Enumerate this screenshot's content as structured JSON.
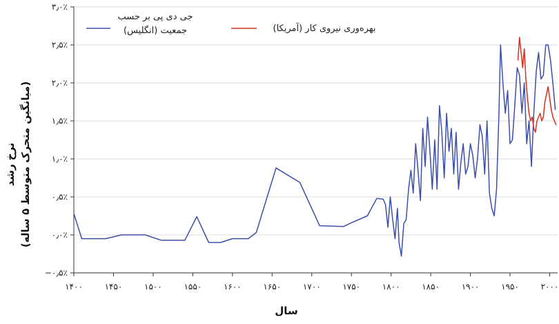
{
  "chart_data": {
    "type": "line",
    "xlabel": "سال",
    "ylabel_line1": "نرخ رشد",
    "ylabel_line2": "(میانگین متحرک متوسط ۵ ساله)",
    "xlim": [
      1400,
      2010
    ],
    "ylim": [
      -0.5,
      3.0
    ],
    "grid": "horizontal",
    "legend_position": "top",
    "x_ticks": [
      1400,
      1450,
      1500,
      1550,
      1600,
      1650,
      1700,
      1750,
      1800,
      1850,
      1900,
      1950,
      2000
    ],
    "x_tick_labels": [
      "۱۴۰۰",
      "۱۴۵۰",
      "۱۵۰۰",
      "۱۵۵۰",
      "۱۶۰۰",
      "۱۶۵۰",
      "۱۷۰۰",
      "۱۷۵۰",
      "۱۸۰۰",
      "۱۸۵۰",
      "۱۹۰۰",
      "۱۹۵۰",
      "۲۰۰۰"
    ],
    "y_ticks": [
      -0.5,
      0.0,
      0.5,
      1.0,
      1.5,
      2.0,
      2.5,
      3.0
    ],
    "y_tick_labels": [
      "−۰٫۵٪",
      "۰٫۰٪",
      "۰٫۵٪",
      "۱٫۰٪",
      "۱٫۵٪",
      "۲٫۰٪",
      "۲٫۵٪",
      "۳٫۰٪"
    ],
    "series": [
      {
        "name": "جی دی پی بر حسب جمعیت (انگلیس)",
        "legend_lines": [
          "جی دی پی بر حسب",
          "جمعیت (انگلیس)"
        ],
        "color": "#3b4ea8",
        "x": [
          1400,
          1410,
          1440,
          1460,
          1490,
          1510,
          1540,
          1555,
          1570,
          1585,
          1600,
          1620,
          1630,
          1655,
          1685,
          1710,
          1740,
          1750,
          1770,
          1782,
          1790,
          1793,
          1796,
          1799,
          1802,
          1805,
          1808,
          1810,
          1813,
          1816,
          1819,
          1822,
          1825,
          1828,
          1831,
          1834,
          1837,
          1840,
          1843,
          1846,
          1849,
          1852,
          1855,
          1858,
          1861,
          1864,
          1867,
          1870,
          1873,
          1876,
          1879,
          1882,
          1885,
          1888,
          1891,
          1894,
          1897,
          1900,
          1903,
          1906,
          1909,
          1912,
          1915,
          1918,
          1921,
          1924,
          1927,
          1930,
          1933,
          1936,
          1938,
          1941,
          1944,
          1947,
          1950,
          1953,
          1956,
          1959,
          1962,
          1965,
          1968,
          1971,
          1974,
          1977,
          1980,
          1983,
          1986,
          1989,
          1992,
          1995,
          1998,
          2001,
          2004,
          2007
        ],
        "y": [
          0.28,
          -0.05,
          -0.05,
          0.0,
          0.0,
          -0.07,
          -0.07,
          0.24,
          -0.1,
          -0.1,
          -0.05,
          -0.05,
          0.03,
          0.88,
          0.69,
          0.12,
          0.11,
          0.16,
          0.25,
          0.48,
          0.47,
          0.4,
          0.1,
          0.5,
          0.2,
          -0.05,
          0.35,
          -0.1,
          -0.28,
          0.15,
          0.2,
          0.6,
          0.85,
          0.55,
          1.2,
          0.85,
          0.45,
          1.4,
          0.9,
          1.55,
          1.1,
          0.6,
          1.25,
          0.6,
          1.7,
          1.35,
          0.75,
          1.6,
          1.1,
          1.4,
          0.8,
          1.35,
          0.6,
          0.95,
          1.2,
          0.8,
          0.9,
          1.2,
          1.05,
          0.75,
          1.0,
          1.45,
          1.3,
          0.8,
          1.5,
          0.55,
          0.35,
          0.25,
          0.6,
          1.6,
          2.5,
          2.0,
          1.6,
          1.9,
          1.2,
          1.25,
          1.7,
          2.2,
          2.1,
          1.6,
          2.0,
          1.2,
          1.5,
          0.9,
          1.6,
          2.15,
          2.4,
          2.05,
          2.1,
          2.5,
          2.5,
          2.3,
          2.0,
          1.65
        ]
      },
      {
        "name": "بهره‌وری نیروی کار (آمریکا)",
        "color": "#d32f1f",
        "x": [
          1960,
          1962,
          1964,
          1966,
          1968,
          1970,
          1972,
          1974,
          1976,
          1978,
          1980,
          1982,
          1984,
          1986,
          1988,
          1990,
          1992,
          1994,
          1996,
          1998,
          2000,
          2002,
          2004,
          2006,
          2008
        ],
        "y": [
          2.3,
          2.6,
          2.4,
          2.2,
          2.45,
          2.05,
          1.8,
          1.6,
          1.5,
          1.55,
          1.4,
          1.35,
          1.5,
          1.55,
          1.6,
          1.5,
          1.55,
          1.75,
          1.85,
          1.95,
          1.8,
          1.65,
          1.55,
          1.5,
          1.45
        ]
      }
    ]
  }
}
